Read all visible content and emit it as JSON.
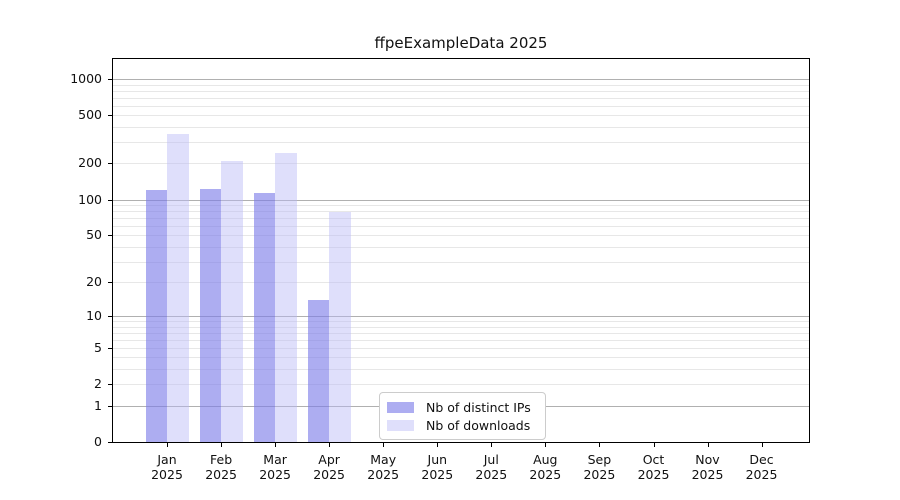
{
  "chart_data": {
    "type": "bar",
    "title": "ffpeExampleData 2025",
    "categories": [
      "Jan",
      "Feb",
      "Mar",
      "Apr",
      "May",
      "Jun",
      "Jul",
      "Aug",
      "Sep",
      "Oct",
      "Nov",
      "Dec"
    ],
    "category_year": "2025",
    "series": [
      {
        "name": "Nb of distinct IPs",
        "color": "#7a7ae9",
        "alpha": 0.62,
        "values": [
          120,
          123,
          113,
          14,
          0,
          0,
          0,
          0,
          0,
          0,
          0,
          0
        ]
      },
      {
        "name": "Nb of downloads",
        "color": "#b8b8f6",
        "alpha": 0.45,
        "values": [
          350,
          210,
          245,
          78,
          0,
          0,
          0,
          0,
          0,
          0,
          0,
          0
        ]
      }
    ],
    "yscale": "log1p",
    "yticks": [
      0,
      1,
      2,
      5,
      10,
      20,
      50,
      100,
      200,
      500,
      1000
    ],
    "ylim": [
      0,
      1500
    ],
    "grid": true,
    "legend_position": "lower-center",
    "colors": {
      "background": "#ffffff",
      "axis": "#000000",
      "text": "#111111",
      "grid_major": "#b0b0b0",
      "grid_minor": "#e7e7e7",
      "legend_border": "#cccccc"
    }
  }
}
